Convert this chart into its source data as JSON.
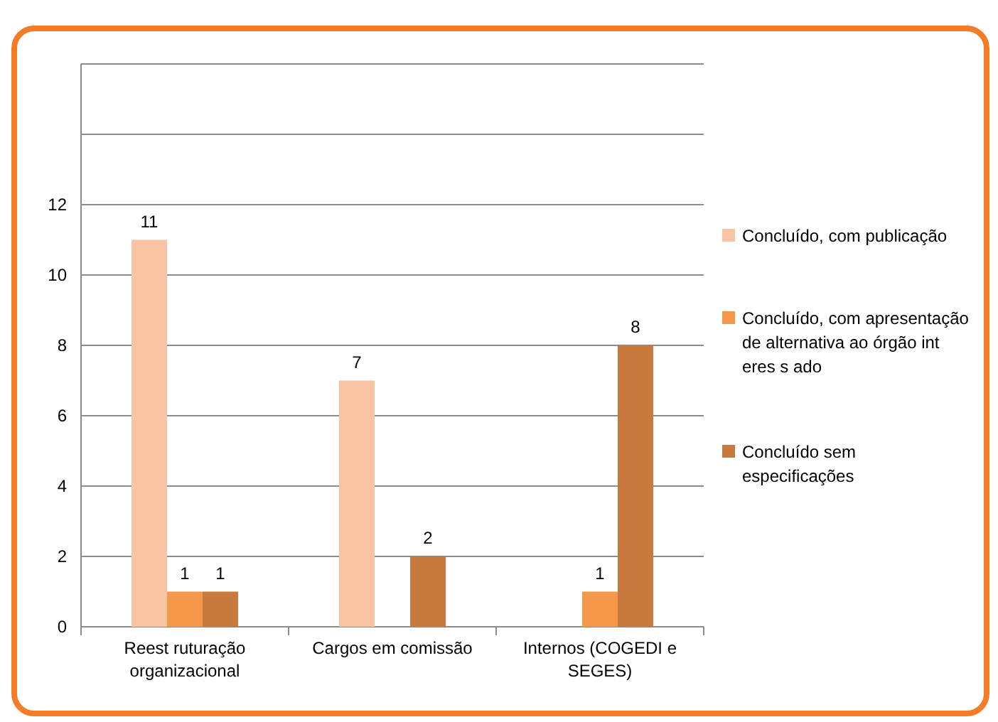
{
  "chart_data": {
    "type": "bar",
    "categories": [
      "Reest ruturação organizacional",
      "Cargos em comissão",
      "Internos (COGEDI e SEGES)"
    ],
    "series": [
      {
        "name": "Concluído, com publicação",
        "color": "#f9c4a4",
        "values": [
          11,
          7,
          null
        ]
      },
      {
        "name": "Concluído, com apresentação de alternativa ao órgão int eres s ado",
        "color": "#f4994a",
        "values": [
          1,
          null,
          1
        ]
      },
      {
        "name": "Concluído sem especificações",
        "color": "#c87a3e",
        "values": [
          1,
          2,
          8
        ]
      }
    ],
    "ylim": [
      0,
      16
    ],
    "yticks": [
      0,
      2,
      4,
      6,
      8,
      10,
      12,
      {
        "value": 14,
        "label": null
      },
      {
        "value": 16,
        "label": null
      }
    ],
    "grid": "y",
    "data_labels": true,
    "legend": "right"
  }
}
